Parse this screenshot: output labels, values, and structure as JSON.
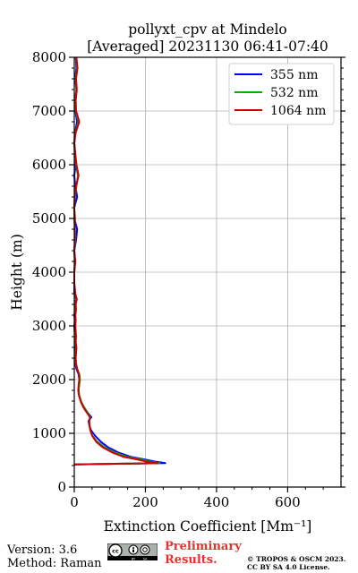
{
  "chart_data": {
    "type": "line",
    "title_line1": "pollyxt_cpv at Mindelo",
    "title_line2": "[Averaged] 20231130 06:41-07:40",
    "xlabel": "Extinction Coefficient [Mm⁻¹]",
    "ylabel": "Height (m)",
    "xlim": [
      0,
      750
    ],
    "ylim": [
      0,
      8000
    ],
    "x_ticks": [
      "0",
      "200",
      "400",
      "600"
    ],
    "x_tick_values": [
      0,
      200,
      400,
      600
    ],
    "y_ticks": [
      "0",
      "1000",
      "2000",
      "3000",
      "4000",
      "5000",
      "6000",
      "7000",
      "8000"
    ],
    "y_tick_values": [
      0,
      1000,
      2000,
      3000,
      4000,
      5000,
      6000,
      7000,
      8000
    ],
    "grid": true,
    "legend_position": "top-right",
    "series": [
      {
        "name": "355 nm",
        "color": "#0000ff",
        "points": [
          [
            0,
            420
          ],
          [
            80,
            430
          ],
          [
            180,
            438
          ],
          [
            256,
            445
          ],
          [
            230,
            470
          ],
          [
            200,
            510
          ],
          [
            160,
            560
          ],
          [
            125,
            640
          ],
          [
            95,
            740
          ],
          [
            75,
            840
          ],
          [
            58,
            960
          ],
          [
            47,
            1060
          ],
          [
            42,
            1150
          ],
          [
            40,
            1230
          ],
          [
            48,
            1300
          ],
          [
            38,
            1380
          ],
          [
            28,
            1480
          ],
          [
            20,
            1580
          ],
          [
            14,
            1700
          ],
          [
            12,
            1800
          ],
          [
            13,
            1900
          ],
          [
            14,
            2000
          ],
          [
            12,
            2100
          ],
          [
            6,
            2200
          ],
          [
            2,
            2300
          ],
          [
            1,
            2400
          ],
          [
            2,
            2500
          ],
          [
            4,
            2600
          ],
          [
            2,
            2700
          ],
          [
            3,
            2800
          ],
          [
            1,
            2900
          ],
          [
            0,
            3000
          ],
          [
            2,
            3100
          ],
          [
            0,
            3200
          ],
          [
            3,
            3300
          ],
          [
            1,
            3400
          ],
          [
            5,
            3500
          ],
          [
            0,
            3600
          ],
          [
            0,
            3800
          ],
          [
            0,
            4000
          ],
          [
            2,
            4200
          ],
          [
            0,
            4400
          ],
          [
            5,
            4600
          ],
          [
            8,
            4800
          ],
          [
            0,
            5000
          ],
          [
            0,
            5200
          ],
          [
            8,
            5400
          ],
          [
            3,
            5600
          ],
          [
            0,
            5800
          ],
          [
            4,
            6000
          ],
          [
            0,
            6400
          ],
          [
            2,
            6600
          ],
          [
            8,
            6800
          ],
          [
            3,
            7000
          ],
          [
            2,
            7200
          ],
          [
            6,
            7400
          ],
          [
            2,
            7600
          ],
          [
            6,
            7800
          ],
          [
            4,
            8000
          ]
        ]
      },
      {
        "name": "532 nm",
        "color": "#00b000",
        "points": [
          [
            0,
            420
          ],
          [
            80,
            430
          ],
          [
            170,
            438
          ],
          [
            240,
            445
          ],
          [
            215,
            470
          ],
          [
            190,
            510
          ],
          [
            150,
            560
          ],
          [
            115,
            640
          ],
          [
            85,
            740
          ],
          [
            65,
            840
          ],
          [
            50,
            960
          ],
          [
            45,
            1060
          ],
          [
            42,
            1150
          ],
          [
            42,
            1230
          ],
          [
            45,
            1300
          ],
          [
            38,
            1380
          ],
          [
            28,
            1480
          ],
          [
            20,
            1580
          ],
          [
            14,
            1700
          ],
          [
            12,
            1800
          ],
          [
            14,
            1900
          ],
          [
            16,
            2000
          ],
          [
            14,
            2100
          ],
          [
            8,
            2200
          ],
          [
            4,
            2300
          ],
          [
            3,
            2400
          ],
          [
            4,
            2500
          ],
          [
            5,
            2600
          ],
          [
            3,
            2700
          ],
          [
            4,
            2800
          ],
          [
            3,
            2900
          ],
          [
            2,
            3000
          ],
          [
            3,
            3100
          ],
          [
            2,
            3200
          ],
          [
            4,
            3300
          ],
          [
            3,
            3400
          ],
          [
            6,
            3500
          ],
          [
            2,
            3600
          ],
          [
            0,
            3800
          ],
          [
            0,
            4000
          ],
          [
            2,
            4200
          ],
          [
            0,
            4400
          ],
          [
            3,
            4600
          ],
          [
            2,
            4800
          ],
          [
            0,
            5000
          ],
          [
            0,
            5200
          ],
          [
            2,
            5400
          ],
          [
            6,
            5600
          ],
          [
            10,
            5800
          ],
          [
            5,
            6000
          ],
          [
            0,
            6400
          ],
          [
            3,
            6600
          ],
          [
            12,
            6800
          ],
          [
            4,
            7000
          ],
          [
            3,
            7200
          ],
          [
            6,
            7400
          ],
          [
            4,
            7600
          ],
          [
            8,
            7800
          ],
          [
            5,
            8000
          ]
        ]
      },
      {
        "name": "1064 nm",
        "color": "#cc0000",
        "points": [
          [
            0,
            420
          ],
          [
            80,
            430
          ],
          [
            160,
            438
          ],
          [
            235,
            445
          ],
          [
            205,
            470
          ],
          [
            180,
            510
          ],
          [
            140,
            560
          ],
          [
            108,
            640
          ],
          [
            80,
            740
          ],
          [
            62,
            840
          ],
          [
            50,
            960
          ],
          [
            45,
            1060
          ],
          [
            43,
            1150
          ],
          [
            42,
            1230
          ],
          [
            44,
            1300
          ],
          [
            36,
            1380
          ],
          [
            26,
            1480
          ],
          [
            19,
            1580
          ],
          [
            13,
            1700
          ],
          [
            11,
            1800
          ],
          [
            12,
            1900
          ],
          [
            14,
            2000
          ],
          [
            13,
            2100
          ],
          [
            8,
            2200
          ],
          [
            5,
            2300
          ],
          [
            4,
            2400
          ],
          [
            5,
            2500
          ],
          [
            6,
            2600
          ],
          [
            4,
            2700
          ],
          [
            5,
            2800
          ],
          [
            4,
            2900
          ],
          [
            3,
            3000
          ],
          [
            4,
            3100
          ],
          [
            3,
            3200
          ],
          [
            5,
            3300
          ],
          [
            4,
            3400
          ],
          [
            7,
            3500
          ],
          [
            3,
            3600
          ],
          [
            0,
            3800
          ],
          [
            0,
            4000
          ],
          [
            3,
            4200
          ],
          [
            0,
            4400
          ],
          [
            2,
            4600
          ],
          [
            1,
            4800
          ],
          [
            2,
            5000
          ],
          [
            0,
            5200
          ],
          [
            1,
            5400
          ],
          [
            5,
            5600
          ],
          [
            12,
            5800
          ],
          [
            6,
            6000
          ],
          [
            0,
            6400
          ],
          [
            4,
            6600
          ],
          [
            14,
            6800
          ],
          [
            5,
            7000
          ],
          [
            4,
            7200
          ],
          [
            7,
            7400
          ],
          [
            5,
            7600
          ],
          [
            9,
            7800
          ],
          [
            6,
            8000
          ]
        ]
      }
    ]
  },
  "footer": {
    "version": "Version: 3.6",
    "method": "Method: Raman",
    "prelim_line1": "Preliminary",
    "prelim_line2": "Results.",
    "copyright_line1": "© TROPOS & OSCM 2023.",
    "copyright_line2": "CC BY SA 4.0 License."
  },
  "license_badge": {
    "icon": "cc-by-sa-icon",
    "text": "cc BY SA"
  }
}
